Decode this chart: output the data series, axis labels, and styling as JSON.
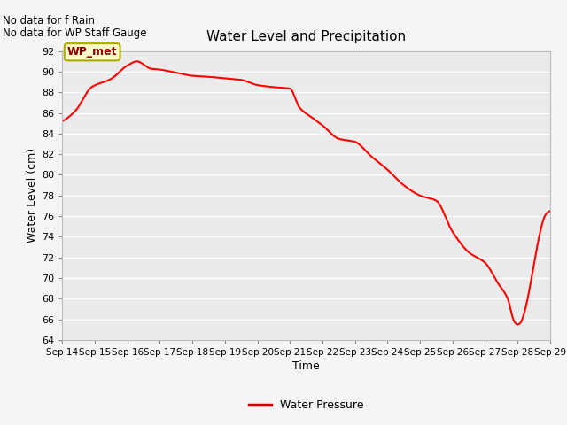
{
  "title": "Water Level and Precipitation",
  "xlabel": "Time",
  "ylabel": "Water Level (cm)",
  "ylim": [
    64,
    92
  ],
  "yticks": [
    64,
    66,
    68,
    70,
    72,
    74,
    76,
    78,
    80,
    82,
    84,
    86,
    88,
    90,
    92
  ],
  "x_labels": [
    "Sep 14",
    "Sep 15",
    "Sep 16",
    "Sep 17",
    "Sep 18",
    "Sep 19",
    "Sep 20",
    "Sep 21",
    "Sep 22",
    "Sep 23",
    "Sep 24",
    "Sep 25",
    "Sep 26",
    "Sep 27",
    "Sep 28",
    "Sep 29"
  ],
  "line_color": "#ff0000",
  "line_width": 1.5,
  "legend_label": "Water Pressure",
  "legend_line_color": "#cc0000",
  "wp_met_label": "WP_met",
  "no_data_text1": "No data for f Rain",
  "no_data_text2": "No data for WP Staff Gauge",
  "plot_bg_color": "#ebebeb",
  "fig_bg_color": "#f5f5f5",
  "grid_color": "#ffffff",
  "x_ctrl": [
    0,
    0.4,
    0.9,
    1.5,
    2.0,
    2.3,
    2.5,
    2.7,
    3.0,
    3.5,
    4.0,
    4.5,
    5.0,
    5.5,
    6.0,
    6.5,
    7.0,
    7.3,
    7.7,
    8.0,
    8.5,
    9.0,
    9.5,
    10.0,
    10.5,
    11.0,
    11.5,
    12.0,
    12.5,
    13.0,
    13.4,
    13.7,
    13.85,
    13.9,
    14.0,
    14.05,
    14.9,
    15.0
  ],
  "y_ctrl": [
    85.2,
    86.2,
    88.5,
    89.3,
    90.6,
    91.0,
    90.7,
    90.3,
    90.2,
    89.9,
    89.6,
    89.5,
    89.35,
    89.2,
    88.7,
    88.5,
    88.35,
    86.5,
    85.5,
    84.8,
    83.5,
    83.2,
    81.8,
    80.5,
    79.0,
    78.0,
    77.5,
    74.5,
    72.5,
    71.5,
    69.5,
    68.0,
    66.2,
    65.8,
    65.5,
    65.55,
    76.3,
    76.5
  ]
}
